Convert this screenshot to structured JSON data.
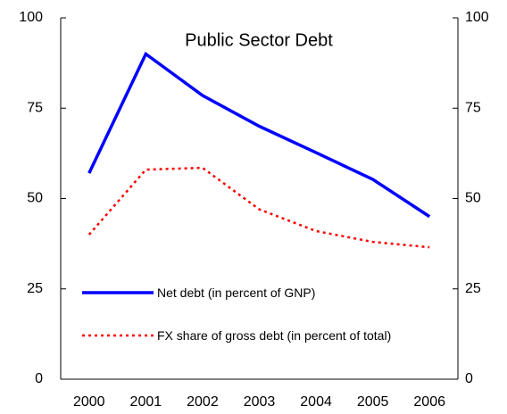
{
  "chart_data": {
    "type": "line",
    "title": "Public Sector Debt",
    "categories": [
      "2000",
      "2001",
      "2002",
      "2003",
      "2004",
      "2005",
      "2006"
    ],
    "series": [
      {
        "name": "Net debt (in percent of GNP)",
        "color": "#0000ff",
        "dash": "solid",
        "values": [
          57,
          90,
          78.5,
          70,
          62.7,
          55.3,
          45
        ]
      },
      {
        "name": "FX share of gross debt (in percent of total)",
        "color": "#ff0000",
        "dash": "dotted",
        "values": [
          40,
          58,
          58.5,
          47,
          41,
          38,
          36.5
        ]
      }
    ],
    "ylim": [
      0,
      100
    ],
    "yticks": [
      0,
      25,
      50,
      75,
      100
    ],
    "y2lim": [
      0,
      100
    ],
    "y2ticks": [
      0,
      25,
      50,
      75,
      100
    ],
    "grid": false
  }
}
